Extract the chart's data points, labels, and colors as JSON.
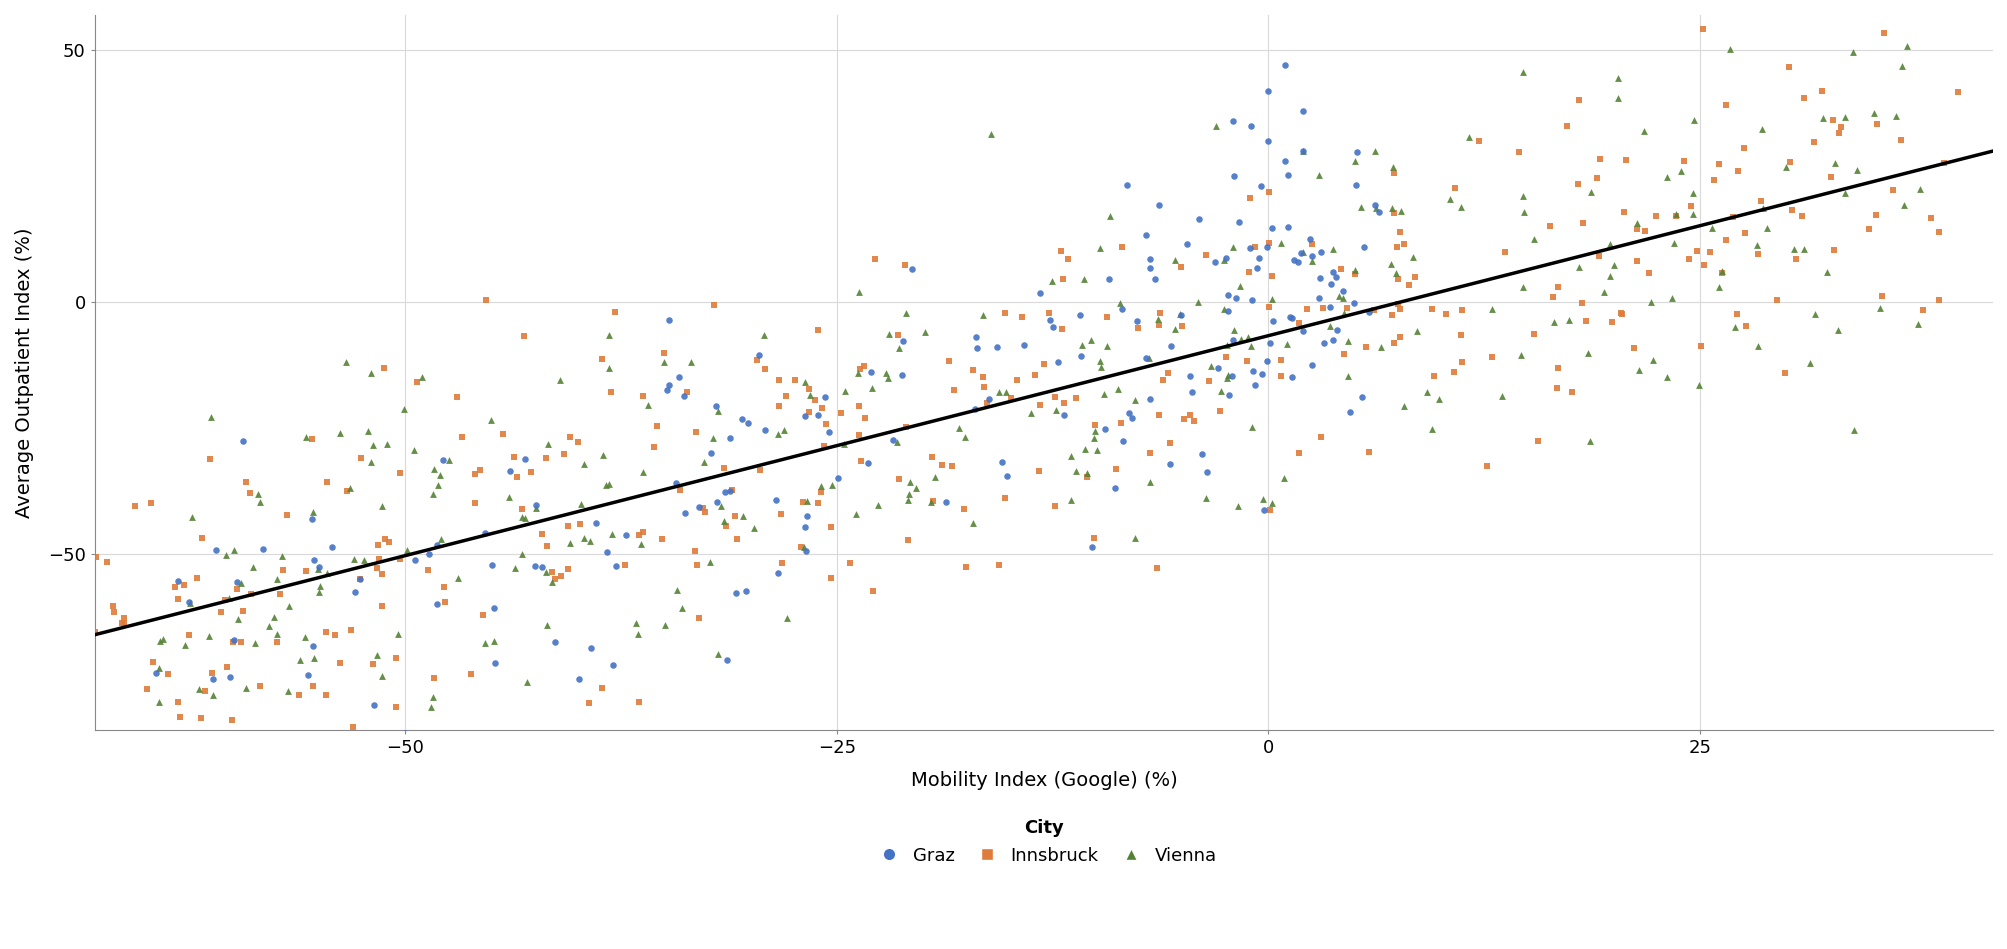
{
  "title": "",
  "xlabel": "Mobility Index (Google) (%)",
  "ylabel": "Average Outpatient Index (%)",
  "xlim": [
    -68,
    42
  ],
  "ylim": [
    -85,
    57
  ],
  "xticks": [
    -50,
    -25,
    0,
    25
  ],
  "yticks": [
    -50,
    0,
    50
  ],
  "background_color": "#ffffff",
  "grid_color": "#d9d9d9",
  "regression_color": "#000000",
  "regression_lw": 2.5,
  "regression_x_start": -68,
  "regression_x_end": 42,
  "regression_y_start": -66,
  "regression_y_end": 30,
  "cities": {
    "Graz": {
      "color": "#4472C4",
      "marker": "o",
      "size": 22
    },
    "Innsbruck": {
      "color": "#E07B39",
      "marker": "s",
      "size": 20
    },
    "Vienna": {
      "color": "#548235",
      "marker": "^",
      "size": 24
    }
  },
  "legend_title": "City",
  "legend_labels": [
    "Graz",
    "Innsbruck",
    "Vienna"
  ],
  "xlabel_fontsize": 14,
  "ylabel_fontsize": 14,
  "tick_fontsize": 13,
  "legend_fontsize": 13,
  "legend_title_fontsize": 13
}
